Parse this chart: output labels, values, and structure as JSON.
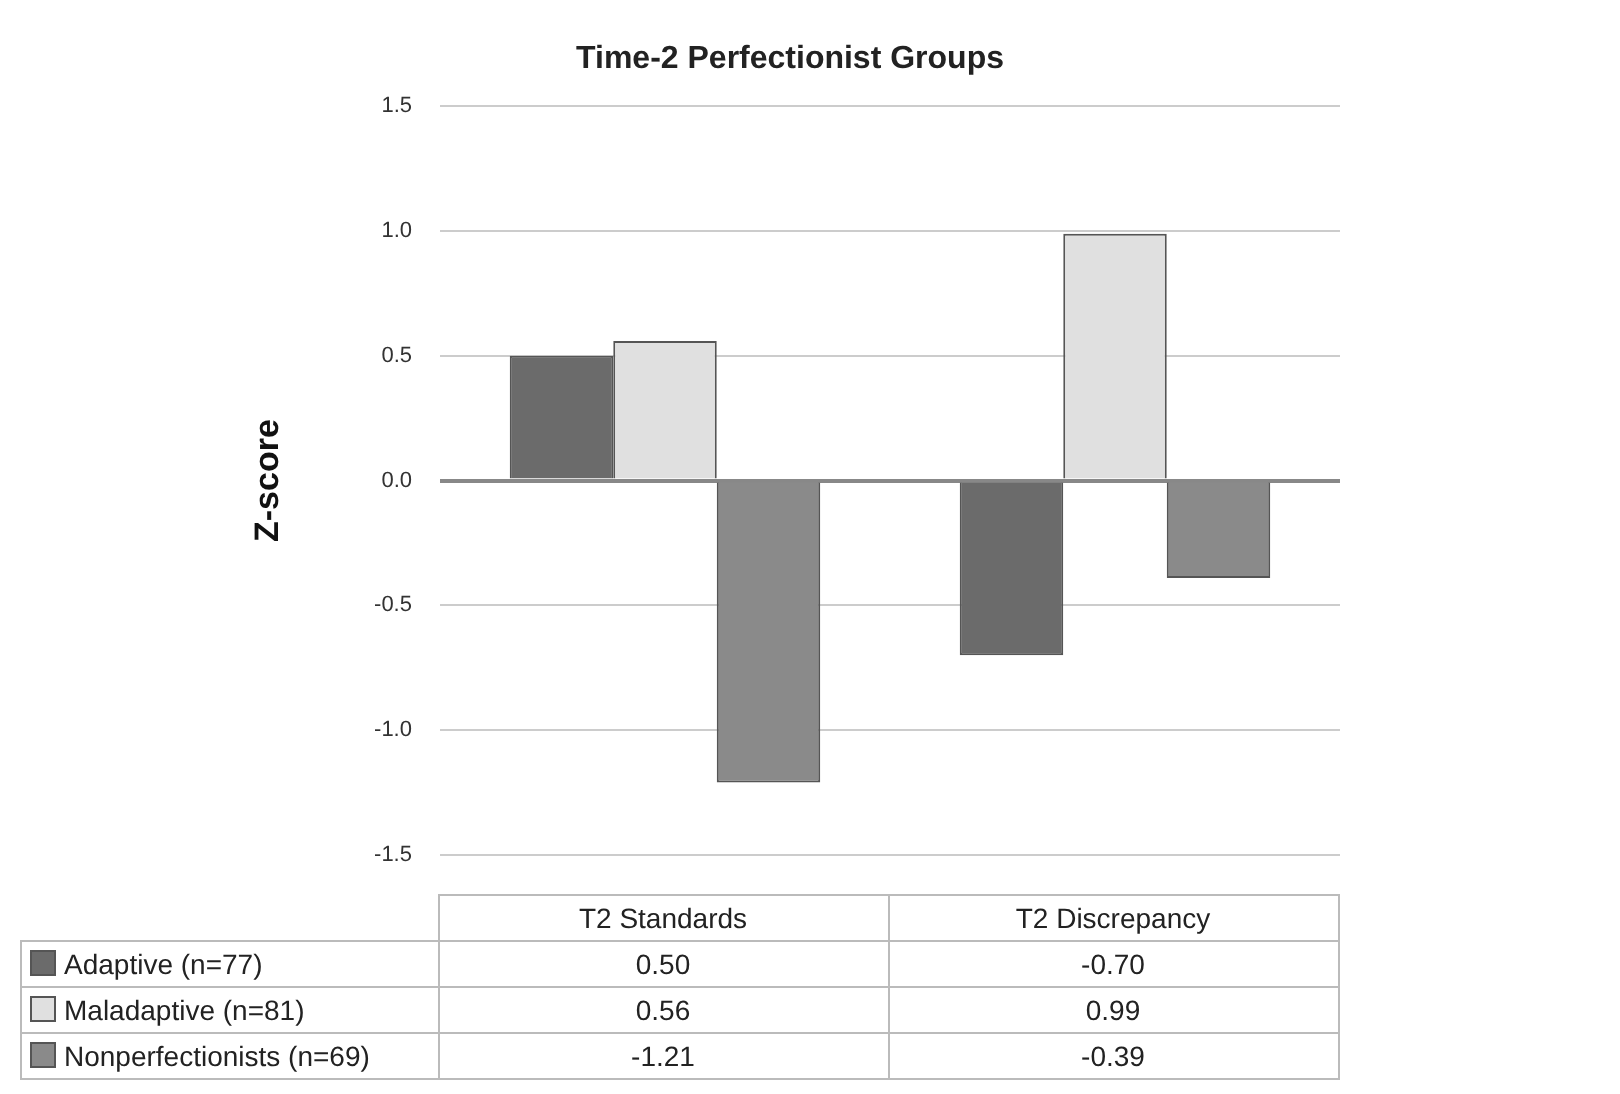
{
  "chart_data": {
    "type": "bar",
    "title": "Time-2 Perfectionist Groups",
    "ylabel": "Z-score",
    "categories": [
      "T2 Standards",
      "T2 Discrepancy"
    ],
    "series": [
      {
        "name": "Adaptive (n=77)",
        "color": "#6b6b6b",
        "values": [
          0.5,
          -0.7
        ],
        "value_labels": [
          "0.50",
          "-0.70"
        ]
      },
      {
        "name": "Maladaptive (n=81)",
        "color": "#e0e0e0",
        "values": [
          0.56,
          0.99
        ],
        "value_labels": [
          "0.56",
          "0.99"
        ]
      },
      {
        "name": "Nonperfectionists (n=69)",
        "color": "#8a8a8a",
        "values": [
          -1.21,
          -0.39
        ],
        "value_labels": [
          "-1.21",
          "-0.39"
        ]
      }
    ],
    "ylim": [
      -1.5,
      1.5
    ],
    "yticks": [
      {
        "value": -1.5,
        "label": "-1.5"
      },
      {
        "value": -1,
        "label": "-1.0"
      },
      {
        "value": -0.5,
        "label": "-0.5"
      },
      {
        "value": 0,
        "label": "0.0"
      },
      {
        "value": 0.5,
        "label": "0.5"
      },
      {
        "value": 1,
        "label": "1.0"
      },
      {
        "value": 1.5,
        "label": "1.5"
      }
    ],
    "grid": "y",
    "legend": "bottom"
  }
}
